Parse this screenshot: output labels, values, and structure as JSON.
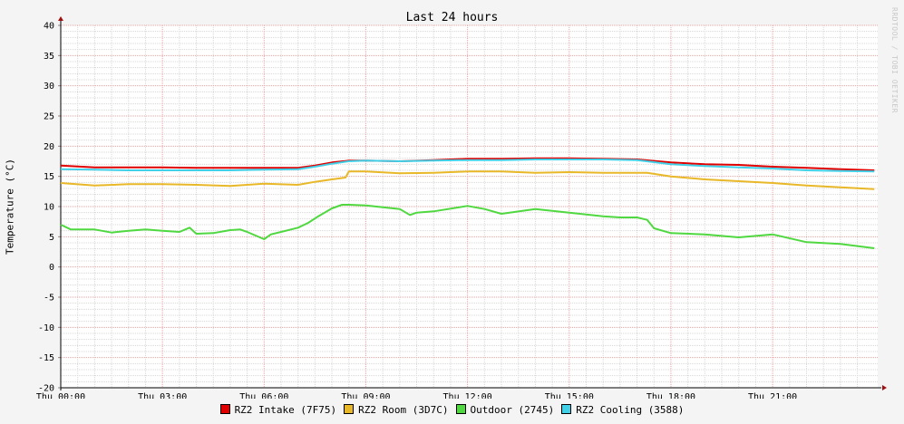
{
  "chart_data": {
    "type": "line",
    "title": "Last 24 hours",
    "ylabel": "Temperature (°C)",
    "xlabel": "",
    "watermark": "RRDTOOL / TOBI OETIKER",
    "ylim": [
      -20,
      40
    ],
    "yticks": [
      40,
      35,
      30,
      25,
      20,
      15,
      10,
      5,
      0,
      -5,
      -10,
      -15,
      -20
    ],
    "xlim": [
      0,
      24.1
    ],
    "xticks": [
      {
        "hour": 0,
        "label": "Thu 00:00"
      },
      {
        "hour": 3,
        "label": "Thu 03:00"
      },
      {
        "hour": 6,
        "label": "Thu 06:00"
      },
      {
        "hour": 9,
        "label": "Thu 09:00"
      },
      {
        "hour": 12,
        "label": "Thu 12:00"
      },
      {
        "hour": 15,
        "label": "Thu 15:00"
      },
      {
        "hour": 18,
        "label": "Thu 18:00"
      },
      {
        "hour": 21,
        "label": "Thu 21:00"
      }
    ],
    "grid": true,
    "legend_position": "bottom",
    "series": [
      {
        "name": "RZ2 Intake (7F75)",
        "color": "#e00000",
        "x": [
          0,
          1,
          2,
          3,
          4,
          5,
          6,
          7,
          7.5,
          8,
          8.5,
          9,
          10,
          11,
          12,
          13,
          14,
          15,
          16,
          17,
          18,
          19,
          20,
          21,
          22,
          23,
          24
        ],
        "y": [
          16.8,
          16.5,
          16.5,
          16.5,
          16.4,
          16.4,
          16.4,
          16.4,
          16.8,
          17.3,
          17.6,
          17.6,
          17.5,
          17.7,
          17.9,
          17.9,
          18.0,
          18.0,
          17.9,
          17.8,
          17.3,
          17.0,
          16.9,
          16.6,
          16.4,
          16.2,
          16.0
        ]
      },
      {
        "name": "RZ2 Room (3D7C)",
        "color": "#e8b828",
        "x": [
          0,
          1,
          2,
          3,
          4,
          5,
          6,
          7,
          7.5,
          8,
          8.4,
          8.5,
          9,
          10,
          11,
          12,
          13,
          14,
          15,
          16,
          17,
          17.3,
          18,
          19,
          20,
          21,
          22,
          23,
          24
        ],
        "y": [
          13.9,
          13.5,
          13.7,
          13.7,
          13.6,
          13.4,
          13.8,
          13.6,
          14.1,
          14.5,
          14.8,
          15.8,
          15.8,
          15.5,
          15.6,
          15.8,
          15.8,
          15.6,
          15.7,
          15.6,
          15.6,
          15.6,
          15.0,
          14.5,
          14.2,
          13.9,
          13.5,
          13.2,
          12.9
        ]
      },
      {
        "name": "Outdoor (2745)",
        "color": "#50d840",
        "x": [
          0,
          0.3,
          1,
          1.5,
          2,
          2.5,
          3,
          3.5,
          3.8,
          4,
          4.5,
          5,
          5.3,
          5.5,
          6,
          6.2,
          6.5,
          7,
          7.3,
          7.6,
          8,
          8.3,
          8.5,
          9,
          10,
          10.3,
          10.5,
          11,
          12,
          12.5,
          13,
          14,
          14.5,
          15,
          16,
          16.5,
          17,
          17.3,
          17.5,
          18,
          19,
          20,
          21,
          22,
          23,
          24
        ],
        "y": [
          7.0,
          6.2,
          6.2,
          5.7,
          6.0,
          6.2,
          6.0,
          5.8,
          6.5,
          5.5,
          5.6,
          6.1,
          6.2,
          5.8,
          4.6,
          5.4,
          5.8,
          6.5,
          7.3,
          8.4,
          9.7,
          10.3,
          10.3,
          10.2,
          9.6,
          8.6,
          9.0,
          9.2,
          10.1,
          9.6,
          8.8,
          9.6,
          9.3,
          9.0,
          8.4,
          8.2,
          8.2,
          7.8,
          6.4,
          5.6,
          5.4,
          4.9,
          5.4,
          4.1,
          3.8,
          3.1
        ]
      },
      {
        "name": "RZ2 Cooling (3588)",
        "color": "#40d0e8",
        "x": [
          0,
          1,
          2,
          3,
          4,
          5,
          6,
          7,
          7.5,
          8,
          8.5,
          9,
          10,
          11,
          12,
          13,
          14,
          15,
          16,
          17,
          18,
          19,
          20,
          21,
          22,
          23,
          24
        ],
        "y": [
          16.2,
          16.1,
          16.0,
          16.0,
          16.0,
          16.0,
          16.1,
          16.2,
          16.6,
          17.1,
          17.5,
          17.6,
          17.5,
          17.6,
          17.7,
          17.7,
          17.8,
          17.8,
          17.8,
          17.7,
          17.0,
          16.7,
          16.5,
          16.3,
          16.0,
          15.9,
          15.8
        ]
      }
    ]
  }
}
